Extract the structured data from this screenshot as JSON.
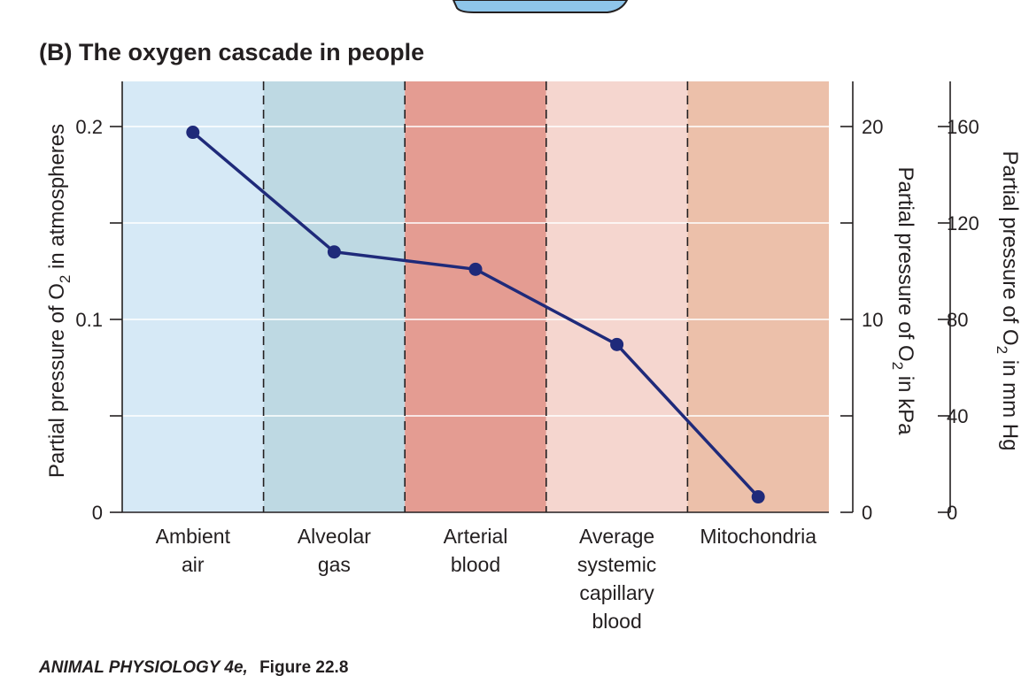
{
  "chart_data": {
    "type": "line",
    "title": "(B)  The oxygen cascade in people",
    "categories": [
      [
        "Ambient",
        "air"
      ],
      [
        "Alveolar",
        "gas"
      ],
      [
        "Arterial",
        "blood"
      ],
      [
        "Average",
        "systemic",
        "capillary",
        "blood"
      ],
      [
        "Mitochondria"
      ]
    ],
    "band_colors": [
      "#d6e9f6",
      "#bed9e3",
      "#e49c92",
      "#f5d6cf",
      "#ecc0aa"
    ],
    "series": [
      {
        "values": [
          0.197,
          0.135,
          0.126,
          0.087,
          0.008
        ],
        "color": "#1f2a7a"
      }
    ],
    "y_left": {
      "label": {
        "pre": "Partial pressure of O",
        "sub": "2",
        "post": " in atmospheres"
      },
      "range": [
        0,
        0.2
      ],
      "ticks": [
        0,
        0.1,
        0.2
      ],
      "tick_labels": [
        "0",
        "0.1",
        "0.2"
      ],
      "minor_ticks": [
        0.05,
        0.15
      ]
    },
    "y_kpa": {
      "label": {
        "pre": "Partial pressure of O",
        "sub": "2",
        "post": " in kPa"
      },
      "range": [
        0,
        20
      ],
      "ticks": [
        0,
        10,
        20
      ],
      "tick_labels": [
        "0",
        "10",
        "20"
      ],
      "minor_ticks": [
        5,
        15
      ]
    },
    "y_mmhg": {
      "label": {
        "pre": "Partial pressure of O",
        "sub": "2",
        "post": " in mm Hg"
      },
      "range": [
        0,
        160
      ],
      "ticks": [
        0,
        40,
        80,
        120,
        160
      ],
      "tick_labels": [
        "0",
        "40",
        "80",
        "120",
        "160"
      ]
    },
    "grid": true
  },
  "caption": {
    "book": "ANIMAL PHYSIOLOGY 4e,",
    "figure": "Figure 22.8"
  }
}
